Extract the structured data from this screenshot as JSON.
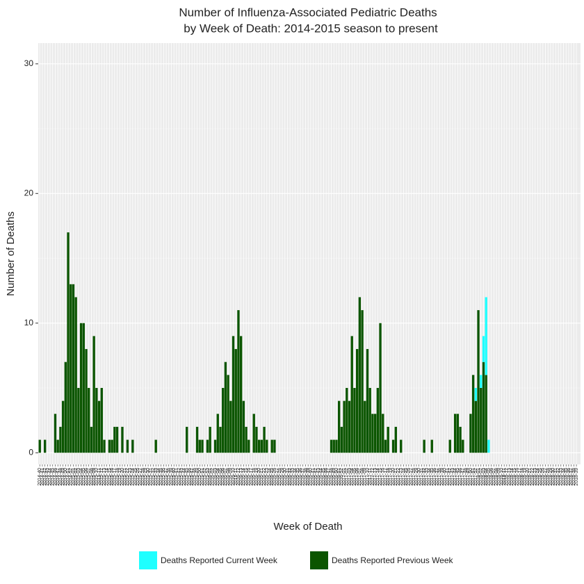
{
  "chart_data": {
    "type": "stacked_bar",
    "title": [
      "Number of Influenza-Associated Pediatric Deaths",
      "by Week of Death: 2014-2015 season to present"
    ],
    "x_label": "Week of Death",
    "y_label": "Number of Deaths",
    "ylim": [
      -0.9,
      31.6
    ],
    "yticks": [
      0,
      10,
      20,
      30
    ],
    "grid": true,
    "legend": "bottom",
    "categories": [
      "2014-40",
      "2014-41",
      "2014-42",
      "2014-43",
      "2014-44",
      "2014-45",
      "2014-46",
      "2014-47",
      "2014-48",
      "2014-49",
      "2014-50",
      "2014-51",
      "2014-52",
      "2015-01",
      "2015-02",
      "2015-03",
      "2015-04",
      "2015-05",
      "2015-06",
      "2015-07",
      "2015-08",
      "2015-09",
      "2015-10",
      "2015-11",
      "2015-12",
      "2015-13",
      "2015-14",
      "2015-15",
      "2015-16",
      "2015-17",
      "2015-18",
      "2015-19",
      "2015-20",
      "2015-21",
      "2015-22",
      "2015-23",
      "2015-24",
      "2015-25",
      "2015-26",
      "2015-27",
      "2015-28",
      "2015-29",
      "2015-30",
      "2015-31",
      "2015-32",
      "2015-33",
      "2015-34",
      "2015-35",
      "2015-36",
      "2015-37",
      "2015-38",
      "2015-39",
      "2015-40",
      "2015-41",
      "2015-42",
      "2015-43",
      "2015-44",
      "2015-45",
      "2015-46",
      "2015-47",
      "2015-48",
      "2015-49",
      "2015-50",
      "2015-51",
      "2015-52",
      "2015-53",
      "2016-01",
      "2016-02",
      "2016-03",
      "2016-04",
      "2016-05",
      "2016-06",
      "2016-07",
      "2016-08",
      "2016-09",
      "2016-10",
      "2016-11",
      "2016-12",
      "2016-13",
      "2016-14",
      "2016-15",
      "2016-16",
      "2016-17",
      "2016-18",
      "2016-19",
      "2016-20",
      "2016-21",
      "2016-22",
      "2016-23",
      "2016-24",
      "2016-25",
      "2016-26",
      "2016-27",
      "2016-28",
      "2016-29",
      "2016-30",
      "2016-31",
      "2016-32",
      "2016-33",
      "2016-34",
      "2016-35",
      "2016-36",
      "2016-37",
      "2016-38",
      "2016-39",
      "2016-40",
      "2016-41",
      "2016-42",
      "2016-43",
      "2016-44",
      "2016-45",
      "2016-46",
      "2016-47",
      "2016-48",
      "2016-49",
      "2016-50",
      "2016-51",
      "2016-52",
      "2017-01",
      "2017-02",
      "2017-03",
      "2017-04",
      "2017-05",
      "2017-06",
      "2017-07",
      "2017-08",
      "2017-09",
      "2017-10",
      "2017-11",
      "2017-12",
      "2017-13",
      "2017-14",
      "2017-15",
      "2017-16",
      "2017-17",
      "2017-18",
      "2017-19",
      "2017-20",
      "2017-21",
      "2017-22",
      "2017-23",
      "2017-24",
      "2017-25",
      "2017-26",
      "2017-27",
      "2017-28",
      "2017-29",
      "2017-30",
      "2017-31",
      "2017-32",
      "2017-33",
      "2017-34",
      "2017-35",
      "2017-36",
      "2017-37",
      "2017-38",
      "2017-39",
      "2017-40",
      "2017-41",
      "2017-42",
      "2017-43",
      "2017-44",
      "2017-45",
      "2017-46",
      "2017-47",
      "2017-48",
      "2017-49",
      "2017-50",
      "2017-51",
      "2017-52",
      "2018-01",
      "2018-02",
      "2018-03",
      "2018-04",
      "2018-05",
      "2018-06",
      "2018-07",
      "2018-08",
      "2018-09",
      "2018-10",
      "2018-11",
      "2018-12",
      "2018-13",
      "2018-14",
      "2018-15",
      "2018-16",
      "2018-17",
      "2018-18",
      "2018-19",
      "2018-20",
      "2018-21",
      "2018-22",
      "2018-23",
      "2018-24",
      "2018-25",
      "2018-26",
      "2018-27",
      "2018-28",
      "2018-29",
      "2018-30",
      "2018-31",
      "2018-32",
      "2018-33",
      "2018-34",
      "2018-35",
      "2018-36",
      "2018-37",
      "2018-38",
      "2018-39"
    ],
    "series": [
      {
        "name": "Deaths Reported Previous Week",
        "color": "#0b5500",
        "values": [
          1,
          0,
          1,
          0,
          0,
          0,
          3,
          1,
          2,
          4,
          7,
          17,
          13,
          13,
          12,
          5,
          10,
          10,
          8,
          5,
          2,
          9,
          5,
          4,
          5,
          1,
          0,
          1,
          1,
          2,
          2,
          0,
          2,
          0,
          1,
          0,
          1,
          0,
          0,
          0,
          0,
          0,
          0,
          0,
          0,
          1,
          0,
          0,
          0,
          0,
          0,
          0,
          0,
          0,
          0,
          0,
          0,
          2,
          0,
          0,
          0,
          2,
          1,
          1,
          0,
          1,
          2,
          0,
          1,
          3,
          2,
          5,
          7,
          6,
          4,
          9,
          8,
          11,
          9,
          4,
          2,
          1,
          0,
          3,
          2,
          1,
          1,
          2,
          1,
          0,
          1,
          1,
          0,
          0,
          0,
          0,
          0,
          0,
          0,
          0,
          0,
          0,
          0,
          0,
          0,
          0,
          0,
          0,
          0,
          0,
          0,
          0,
          0,
          1,
          1,
          1,
          4,
          2,
          4,
          5,
          4,
          9,
          5,
          8,
          12,
          11,
          4,
          8,
          5,
          3,
          3,
          5,
          10,
          3,
          1,
          2,
          0,
          1,
          2,
          0,
          1,
          0,
          0,
          0,
          0,
          0,
          0,
          0,
          0,
          1,
          0,
          0,
          1,
          0,
          0,
          0,
          0,
          0,
          0,
          1,
          0,
          3,
          3,
          2,
          1,
          0,
          0,
          3,
          6,
          4,
          11,
          5,
          7,
          6,
          0,
          0,
          0,
          0,
          0,
          0,
          0,
          0,
          0,
          0,
          0,
          0,
          0,
          0,
          0,
          0,
          0,
          0,
          0,
          0,
          0,
          0,
          0,
          0,
          0,
          0,
          0,
          0,
          0,
          0,
          0,
          0,
          0,
          0,
          0
        ]
      },
      {
        "name": "Deaths Reported Current Week",
        "color": "#1effff",
        "values": [
          0,
          0,
          0,
          0,
          0,
          0,
          0,
          0,
          0,
          0,
          0,
          0,
          0,
          0,
          0,
          0,
          0,
          0,
          0,
          0,
          0,
          0,
          0,
          0,
          0,
          0,
          0,
          0,
          0,
          0,
          0,
          0,
          0,
          0,
          0,
          0,
          0,
          0,
          0,
          0,
          0,
          0,
          0,
          0,
          0,
          0,
          0,
          0,
          0,
          0,
          0,
          0,
          0,
          0,
          0,
          0,
          0,
          0,
          0,
          0,
          0,
          0,
          0,
          0,
          0,
          0,
          0,
          0,
          0,
          0,
          0,
          0,
          0,
          0,
          0,
          0,
          0,
          0,
          0,
          0,
          0,
          0,
          0,
          0,
          0,
          0,
          0,
          0,
          0,
          0,
          0,
          0,
          0,
          0,
          0,
          0,
          0,
          0,
          0,
          0,
          0,
          0,
          0,
          0,
          0,
          0,
          0,
          0,
          0,
          0,
          0,
          0,
          0,
          0,
          0,
          0,
          0,
          0,
          0,
          0,
          0,
          0,
          0,
          0,
          0,
          0,
          0,
          0,
          0,
          0,
          0,
          0,
          0,
          0,
          0,
          0,
          0,
          0,
          0,
          0,
          0,
          0,
          0,
          0,
          0,
          0,
          0,
          0,
          0,
          0,
          0,
          0,
          0,
          0,
          0,
          0,
          0,
          0,
          0,
          0,
          0,
          0,
          0,
          0,
          0,
          0,
          0,
          0,
          0,
          1,
          0,
          1,
          2,
          6,
          1,
          0,
          0,
          0,
          0,
          0,
          0,
          0,
          0,
          0,
          0,
          0,
          0,
          0,
          0,
          0,
          0,
          0,
          0,
          0,
          0,
          0,
          0,
          0,
          0,
          0,
          0,
          0,
          0,
          0,
          0,
          0,
          0,
          0,
          0
        ]
      }
    ]
  }
}
